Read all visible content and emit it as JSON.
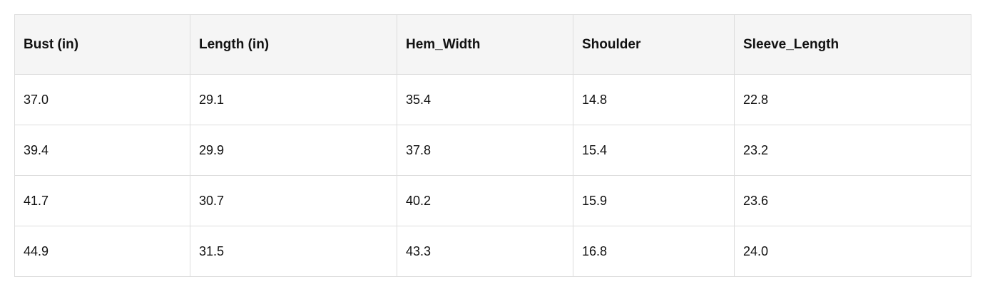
{
  "table": {
    "headers": [
      "Bust (in)",
      "Length (in)",
      "Hem_Width",
      "Shoulder",
      "Sleeve_Length"
    ],
    "rows": [
      [
        "37.0",
        "29.1",
        "35.4",
        "14.8",
        "22.8"
      ],
      [
        "39.4",
        "29.9",
        "37.8",
        "15.4",
        "23.2"
      ],
      [
        "41.7",
        "30.7",
        "40.2",
        "15.9",
        "23.6"
      ],
      [
        "44.9",
        "31.5",
        "43.3",
        "16.8",
        "24.0"
      ]
    ]
  }
}
